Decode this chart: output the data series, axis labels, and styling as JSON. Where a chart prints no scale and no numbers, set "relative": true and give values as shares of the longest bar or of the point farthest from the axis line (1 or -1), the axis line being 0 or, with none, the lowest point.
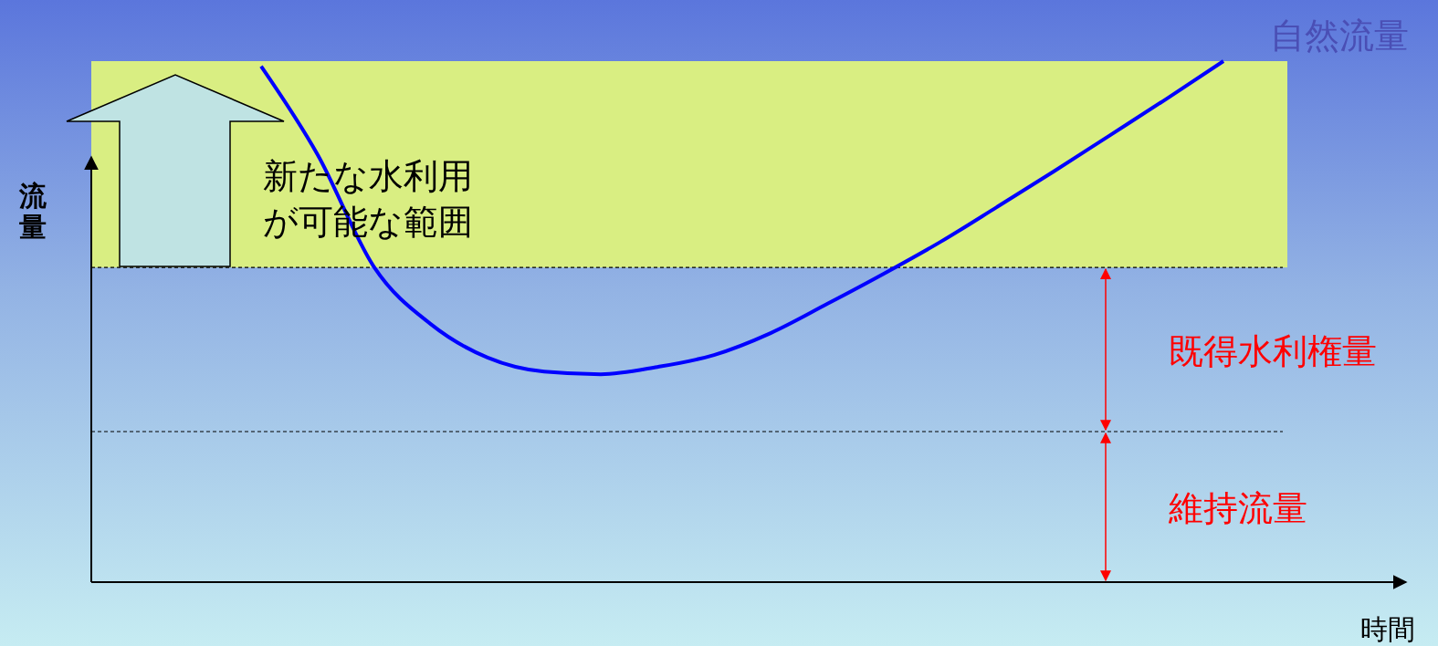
{
  "chart_data": {
    "type": "line",
    "relative": true,
    "xlabel": "時間",
    "ylabel": "流量",
    "categories": [
      null,
      null,
      null,
      null,
      null,
      null,
      null,
      null,
      null,
      null,
      null,
      null,
      null,
      null,
      null,
      null,
      null,
      null,
      null,
      null,
      null,
      null
    ],
    "series": [
      {
        "name": "自然流量",
        "color": "#0000ff",
        "values": [
          null,
          null,
          null,
          0.99,
          0.82,
          0.604,
          0.495,
          0.431,
          0.404,
          0.399,
          0.413,
          0.436,
          0.478,
          0.534,
          0.592,
          0.653,
          0.72,
          0.788,
          0.858,
          0.928,
          1,
          null
        ]
      }
    ],
    "ref_lines": [
      {
        "axis": "y",
        "value": 0.604,
        "color": "#000000",
        "line_style": "dashed"
      },
      {
        "axis": "y",
        "value": 0.289,
        "color": "#000000",
        "line_style": "dashed"
      }
    ],
    "bands": [
      {
        "axis": "y",
        "from": 0.604,
        "to": 1,
        "color": "#d9ee82"
      }
    ],
    "annotations": [
      "新たな水利用が可能な範囲",
      "既得水利権量",
      "維持流量"
    ],
    "marker": "none",
    "line_style": "solid"
  }
}
